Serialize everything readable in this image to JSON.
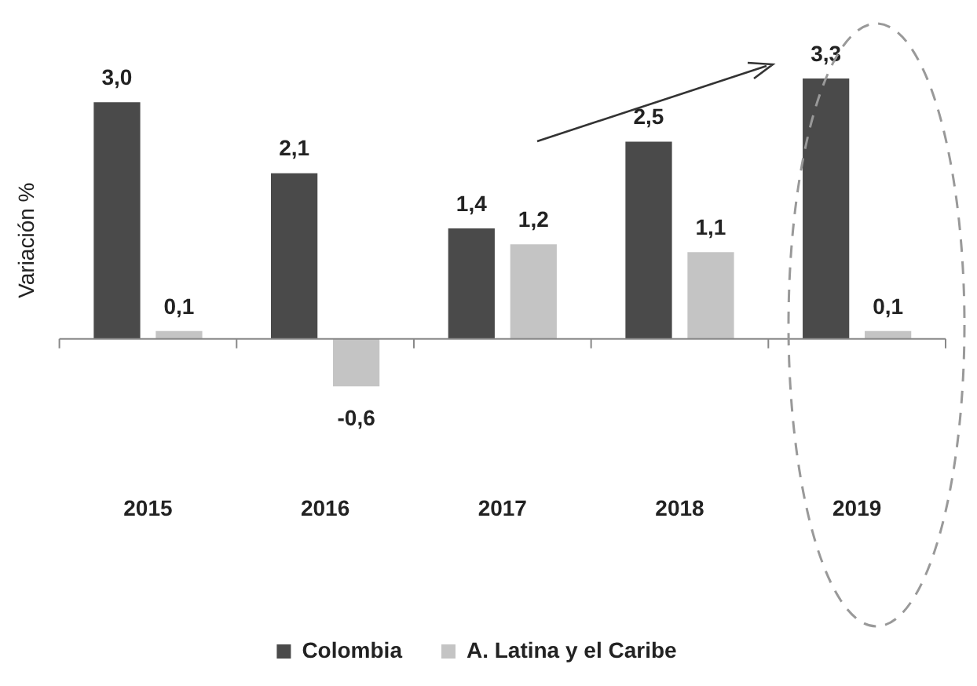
{
  "chart_data": {
    "type": "bar",
    "ylabel": "Variación %",
    "categories": [
      "2015",
      "2016",
      "2017",
      "2018",
      "2019"
    ],
    "series": [
      {
        "name": "Colombia",
        "color": "#4a4a4a",
        "values": [
          3.0,
          2.1,
          1.4,
          2.5,
          3.3
        ],
        "value_labels": [
          "3,0",
          "2,1",
          "1,4",
          "2,5",
          "3,3"
        ]
      },
      {
        "name": "A. Latina y el Caribe",
        "color": "#c4c4c4",
        "values": [
          0.1,
          -0.6,
          1.2,
          1.1,
          0.1
        ],
        "value_labels": [
          "0,1",
          "-0,6",
          "1,2",
          "1,1",
          "0,1"
        ]
      }
    ],
    "legend": "bottom",
    "grid": false
  }
}
